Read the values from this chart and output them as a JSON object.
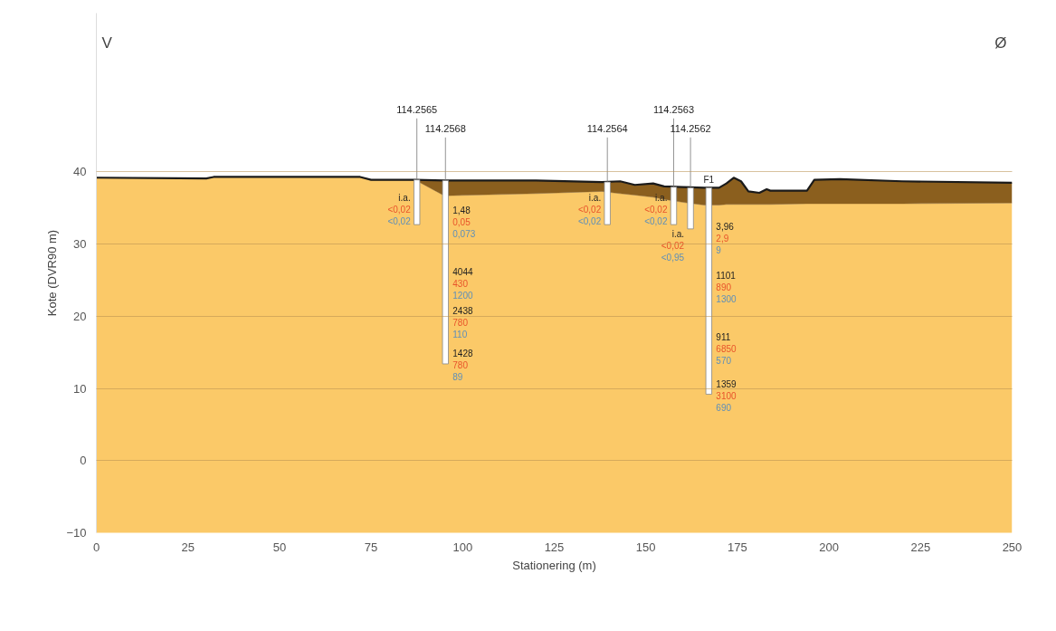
{
  "chart_data": {
    "type": "area",
    "xlabel": "Stationering (m)",
    "ylabel": "Kote (DVR90 m)",
    "xlim": [
      0,
      250
    ],
    "xticks": [
      0,
      25,
      50,
      75,
      100,
      125,
      150,
      175,
      200,
      225,
      250
    ],
    "ylim": [
      -10,
      62
    ],
    "yticks": [
      -10,
      0,
      10,
      20,
      30,
      40
    ],
    "grid": "y",
    "series": [
      {
        "color": "#fbc968",
        "x": [
          0,
          30,
          32,
          72,
          75,
          87,
          95,
          120,
          138,
          143,
          147,
          152,
          155,
          160,
          166,
          170,
          172,
          174,
          176,
          178,
          181,
          183,
          184,
          194,
          196,
          203,
          220,
          250
        ],
        "values": [
          39.2,
          39.1,
          39.3,
          39.3,
          38.9,
          38.9,
          36.7,
          37.0,
          37.3,
          37.0,
          36.8,
          36.5,
          36.2,
          35.8,
          35.4,
          35.4,
          35.5,
          35.5,
          35.5,
          35.5,
          35.5,
          35.5,
          35.5,
          35.6,
          35.6,
          35.6,
          35.6,
          35.7
        ]
      },
      {
        "type": "line",
        "color": "#1a1a1a",
        "x": [
          0,
          30,
          32,
          72,
          75,
          87,
          95,
          120,
          138,
          143,
          147,
          152,
          155,
          160,
          166,
          170,
          172,
          174,
          176,
          178,
          181,
          183,
          184,
          194,
          196,
          203,
          220,
          250
        ],
        "values": [
          39.2,
          39.1,
          39.3,
          39.3,
          38.9,
          38.9,
          38.8,
          38.8,
          38.6,
          38.7,
          38.2,
          38.4,
          38.0,
          37.9,
          37.8,
          37.8,
          38.4,
          39.2,
          38.7,
          37.3,
          37.1,
          37.6,
          37.4,
          37.4,
          38.9,
          39.0,
          38.7,
          38.5
        ],
        "lower": [
          39.2,
          39.1,
          39.3,
          39.3,
          38.9,
          38.9,
          36.7,
          37.0,
          37.3,
          37.0,
          36.8,
          36.5,
          36.2,
          35.8,
          35.4,
          35.4,
          35.5,
          35.5,
          35.5,
          35.5,
          35.5,
          35.5,
          35.5,
          35.6,
          35.6,
          35.6,
          35.6,
          35.7
        ],
        "upper": [
          39.2,
          39.1,
          39.3,
          39.3,
          38.9,
          38.9,
          38.8,
          38.8,
          38.6,
          38.7,
          38.2,
          38.4,
          38.0,
          37.9,
          37.8,
          37.8,
          38.4,
          39.2,
          38.7,
          37.3,
          37.1,
          37.6,
          37.4,
          37.4,
          38.9,
          39.0,
          38.7,
          38.5
        ]
      },
      {
        "type": "bar",
        "color": "#ffffff",
        "x": [
          87.5,
          95.3,
          139.5,
          157.6,
          162.2,
          167.2
        ],
        "base": [
          32.7,
          13.4,
          32.7,
          32.7,
          32.1,
          9.2
        ],
        "values": [
          6.2,
          25.4,
          5.9,
          5.2,
          5.7,
          28.6
        ]
      }
    ],
    "annotations": [
      "V",
      "Ø",
      {
        "text": "114.2565",
        "x": 87.5,
        "y": 38.9
      },
      {
        "text": "114.2568",
        "x": 95.3,
        "y": 38.8
      },
      {
        "text": "114.2564",
        "x": 139.5,
        "y": 38.6
      },
      {
        "text": "114.2563",
        "x": 157.6,
        "y": 37.9
      },
      {
        "text": "114.2562",
        "x": 162.2,
        "y": 37.8
      },
      {
        "text": "F1",
        "x": 167.2,
        "y": 37.8
      },
      {
        "text": "i.a.\n<0,02\n<0,02",
        "x": 87.5,
        "y": 37.2
      },
      {
        "text": "1,48\n0,05\n0,073",
        "x": 95.3,
        "y": 35.5
      },
      {
        "text": "4044\n430\n1200",
        "x": 95.3,
        "y": 26.9
      },
      {
        "text": "2438\n780\n110",
        "x": 95.3,
        "y": 21.6
      },
      {
        "text": "1428\n780\n89",
        "x": 95.3,
        "y": 15.7
      },
      {
        "text": "i.a.\n<0,02\n<0,02",
        "x": 139.5,
        "y": 37.2
      },
      {
        "text": "i.a.\n<0,02\n<0,02",
        "x": 157.6,
        "y": 37.2
      },
      {
        "text": "i.a.\n<0,02\n<0,95",
        "x": 162.2,
        "y": 32.1
      },
      {
        "text": "3,96\n2,9\n9",
        "x": 167.2,
        "y": 33.2
      },
      {
        "text": "1101\n890\n1300",
        "x": 167.2,
        "y": 26.5
      },
      {
        "text": "911\n6850\n570",
        "x": 167.2,
        "y": 17.9
      },
      {
        "text": "1359\n3100\n690",
        "x": 167.2,
        "y": 11.4
      }
    ]
  }
}
